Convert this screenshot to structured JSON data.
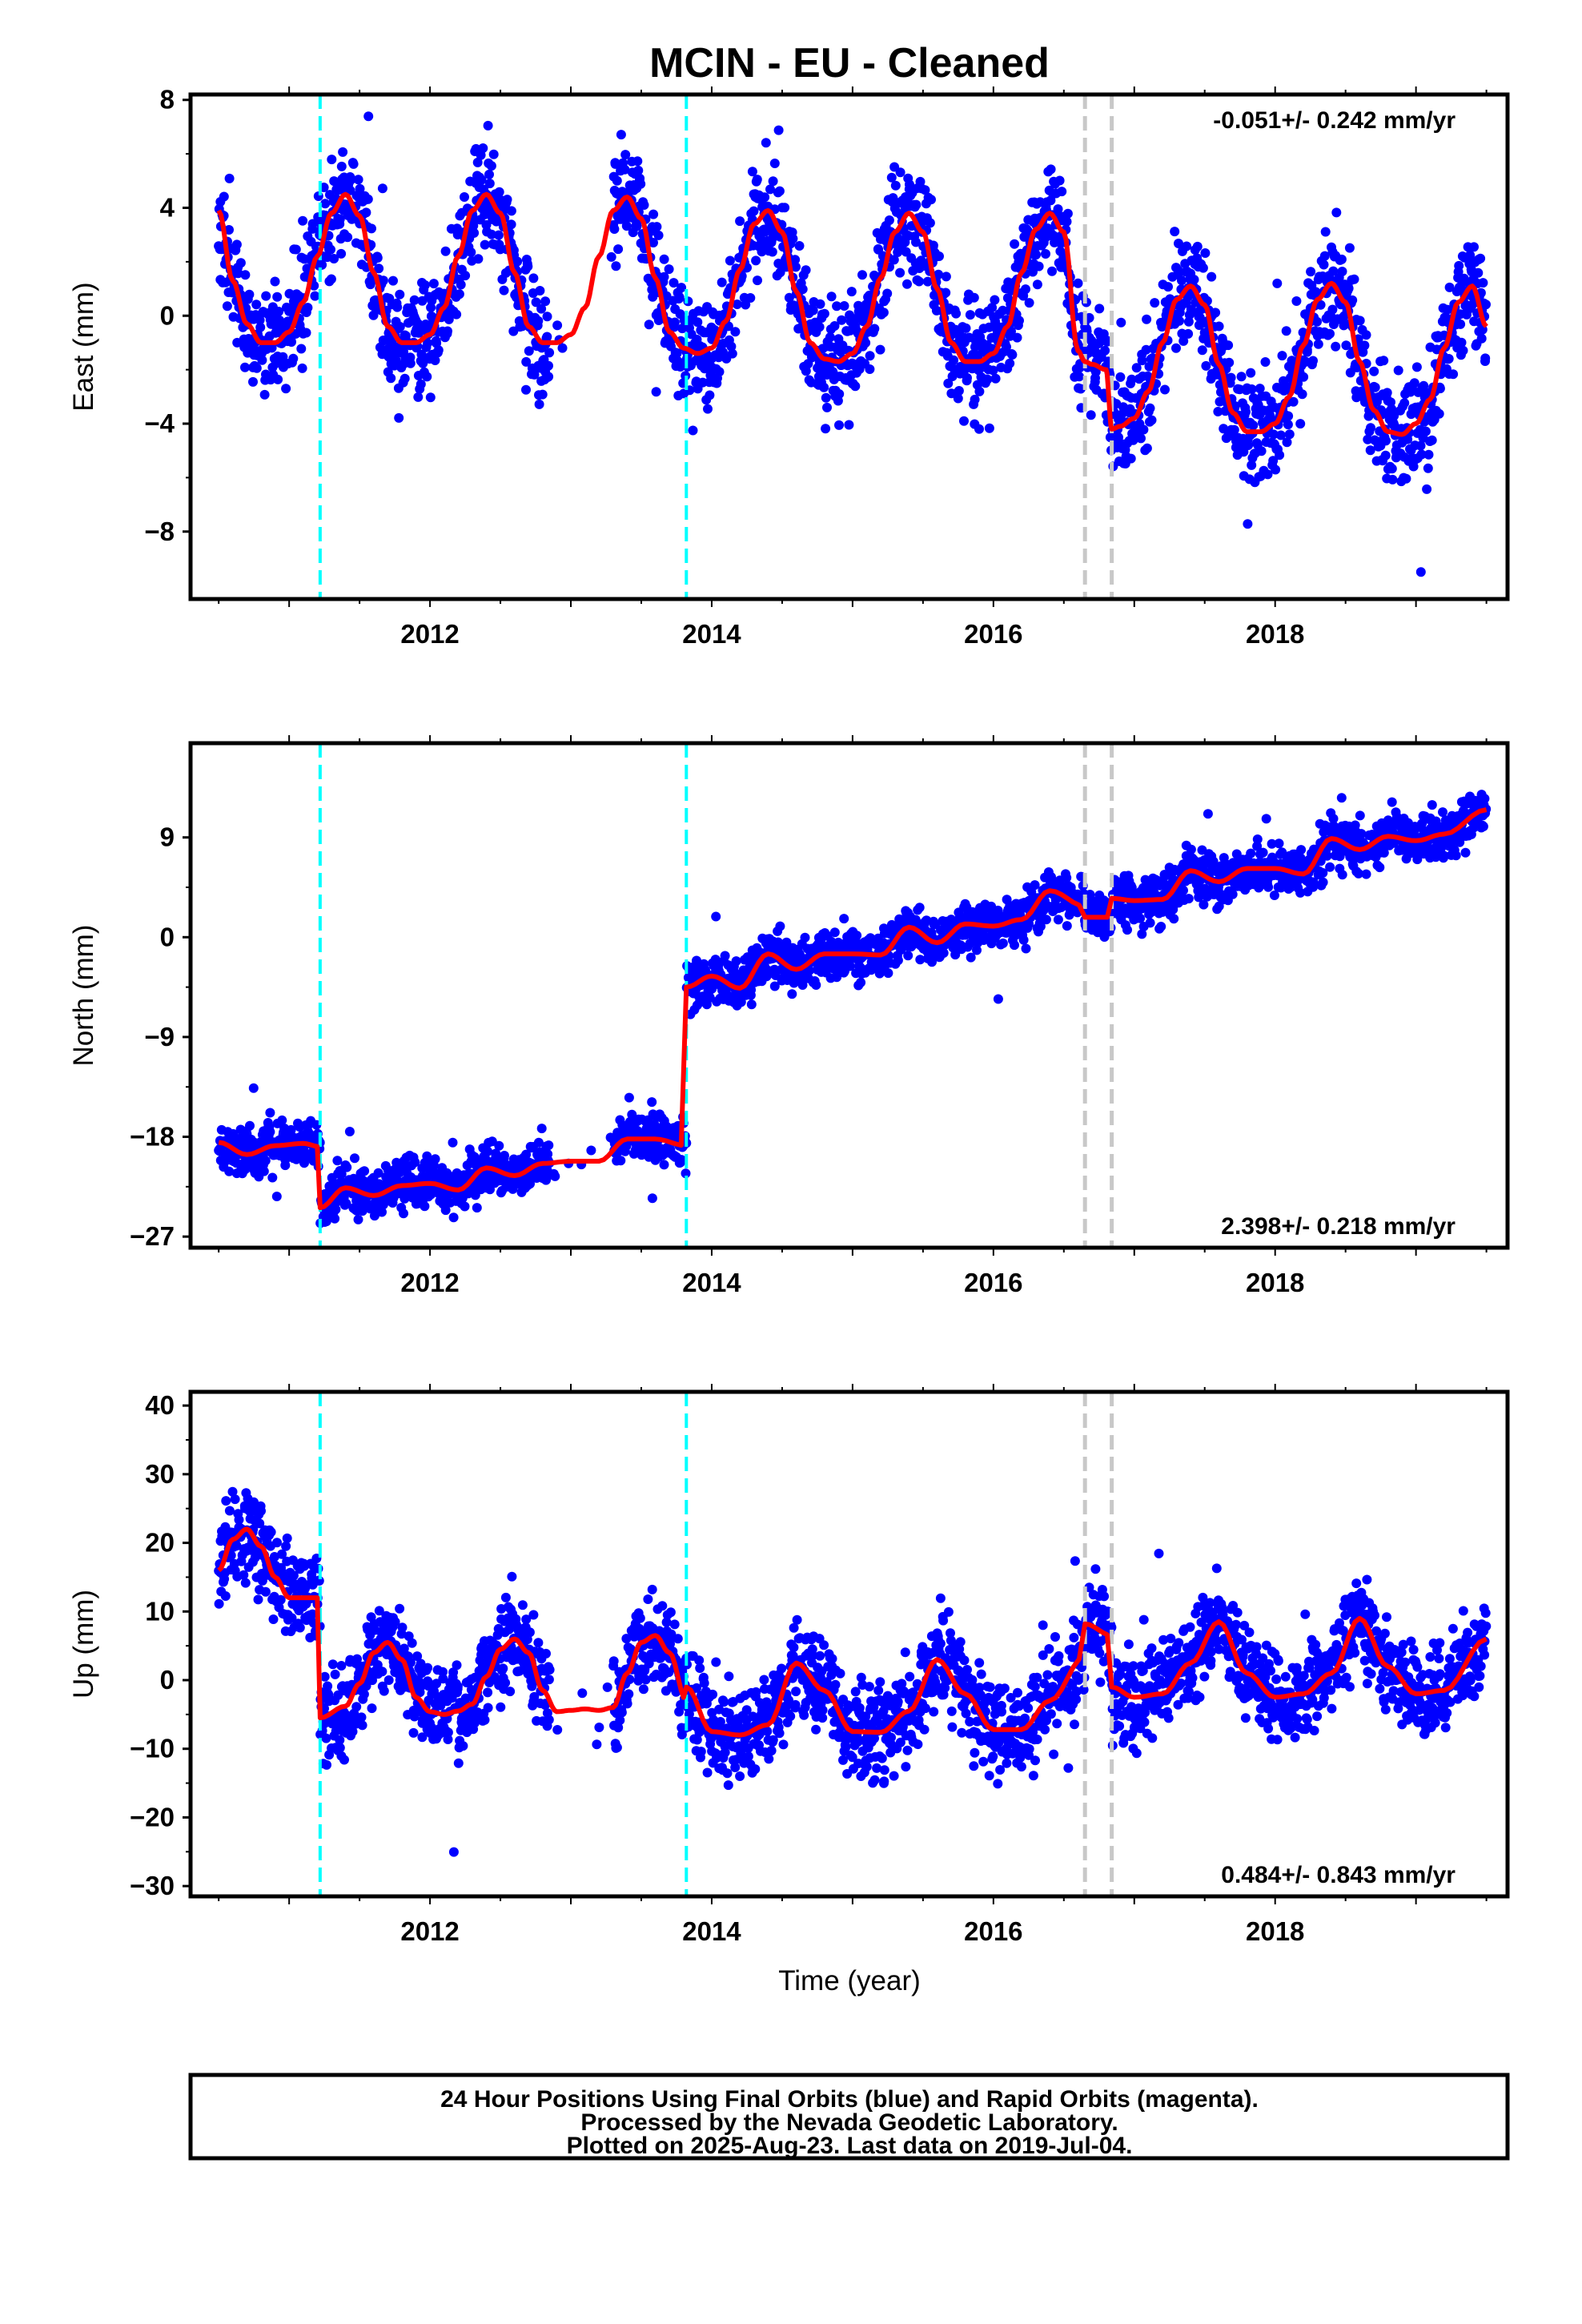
{
  "title": "MCIN  - EU - Cleaned",
  "xlabel": "Time (year)",
  "x_tick_labels": [
    "2012",
    "2014",
    "2016",
    "2018"
  ],
  "colors": {
    "data_points": "#0000ff",
    "model_fit": "#ff0000",
    "equipment_change_lines": "#00ffff",
    "other_event_lines": "#c8c8c8"
  },
  "footer": {
    "line1": "24 Hour Positions Using Final Orbits (blue) and Rapid Orbits (magenta).",
    "line2": "Processed by the Nevada Geodetic Laboratory.",
    "line3": "Plotted on 2025-Aug-23. Last data on 2019-Jul-04."
  },
  "chart_data": [
    {
      "type": "scatter",
      "panel": "east",
      "ylabel": "East (mm)",
      "rate_label": "-0.051+/- 0.242 mm/yr",
      "rate_position": "top-right",
      "xlim": [
        2010.3,
        2019.65
      ],
      "ylim": [
        -10.5,
        8.2
      ],
      "yticks": [
        8,
        4,
        0,
        -4,
        -8
      ],
      "ytick_labels": [
        "8",
        "4",
        "0",
        "−4",
        "−8"
      ],
      "xticks": [
        2012,
        2014,
        2016,
        2018
      ],
      "vlines_cyan": [
        2011.22,
        2013.82
      ],
      "vlines_gray": [
        2016.65,
        2016.84
      ],
      "grid": false,
      "model_fit": {
        "x": [
          2010.5,
          2010.6,
          2010.7,
          2010.8,
          2010.9,
          2011.0,
          2011.1,
          2011.2,
          2011.3,
          2011.4,
          2011.5,
          2011.6,
          2011.7,
          2011.8,
          2011.9,
          2012.0,
          2012.1,
          2012.2,
          2012.3,
          2012.4,
          2012.5,
          2012.6,
          2012.7,
          2012.8,
          2012.9,
          2013.0,
          2013.1,
          2013.2,
          2013.3,
          2013.4,
          2013.5,
          2013.6,
          2013.7,
          2013.8,
          2013.9,
          2014.0,
          2014.1,
          2014.2,
          2014.3,
          2014.4,
          2014.5,
          2014.6,
          2014.7,
          2014.8,
          2014.9,
          2015.0,
          2015.1,
          2015.2,
          2015.3,
          2015.4,
          2015.5,
          2015.6,
          2015.7,
          2015.8,
          2015.9,
          2016.0,
          2016.1,
          2016.2,
          2016.3,
          2016.4,
          2016.5,
          2016.6,
          2016.65,
          2016.7,
          2016.8,
          2016.84,
          2016.9,
          2017.0,
          2017.1,
          2017.2,
          2017.3,
          2017.4,
          2017.5,
          2017.6,
          2017.7,
          2017.8,
          2017.9,
          2018.0,
          2018.1,
          2018.2,
          2018.3,
          2018.4,
          2018.5,
          2018.6,
          2018.7,
          2018.8,
          2018.9,
          2019.0,
          2019.1,
          2019.2,
          2019.3,
          2019.4,
          2019.5
        ],
        "y": [
          3.9,
          1.3,
          -0.3,
          -1.0,
          -1.0,
          -0.6,
          0.5,
          2.2,
          3.8,
          4.5,
          3.7,
          1.6,
          -0.4,
          -1.0,
          -1.0,
          -0.7,
          0.3,
          2.2,
          3.9,
          4.5,
          3.8,
          1.6,
          -0.4,
          -1.0,
          -1.0,
          -0.7,
          0.3,
          2.2,
          3.9,
          4.4,
          3.6,
          1.4,
          -0.6,
          -1.2,
          -1.4,
          -1.2,
          -0.2,
          1.7,
          3.4,
          3.9,
          3.1,
          0.9,
          -1.0,
          -1.6,
          -1.7,
          -1.4,
          -0.4,
          1.4,
          3.1,
          3.8,
          3.1,
          1.0,
          -1.0,
          -1.7,
          -1.7,
          -1.4,
          -0.4,
          1.6,
          3.2,
          3.8,
          3.1,
          -1.3,
          -1.7,
          -1.8,
          -2.0,
          -4.2,
          -4.1,
          -3.8,
          -2.8,
          -1.0,
          0.6,
          1.1,
          0.4,
          -1.8,
          -3.6,
          -4.3,
          -4.3,
          -4.0,
          -3.0,
          -1.1,
          0.6,
          1.2,
          0.5,
          -1.7,
          -3.5,
          -4.3,
          -4.4,
          -4.0,
          -3.1,
          -1.2,
          0.5,
          1.1,
          -0.4
        ]
      }
    },
    {
      "type": "scatter",
      "panel": "north",
      "ylabel": "North (mm)",
      "rate_label": "2.398+/- 0.218 mm/yr",
      "rate_position": "bottom-right",
      "xlim": [
        2010.3,
        2019.65
      ],
      "ylim": [
        -28.0,
        17.5
      ],
      "yticks": [
        9,
        0,
        -9,
        -18,
        -27
      ],
      "ytick_labels": [
        "9",
        "0",
        "−9",
        "−18",
        "−27"
      ],
      "xticks": [
        2012,
        2014,
        2016,
        2018
      ],
      "vlines_cyan": [
        2011.22,
        2013.82
      ],
      "vlines_gray": [
        2016.65,
        2016.84
      ],
      "grid": false,
      "model_fit": {
        "x": [
          2010.5,
          2010.7,
          2010.9,
          2011.1,
          2011.22,
          2011.22,
          2011.4,
          2011.6,
          2011.8,
          2012.0,
          2012.2,
          2012.4,
          2012.6,
          2012.8,
          2013.0,
          2013.2,
          2013.4,
          2013.6,
          2013.82,
          2013.82,
          2014.0,
          2014.2,
          2014.4,
          2014.6,
          2014.8,
          2015.0,
          2015.2,
          2015.4,
          2015.6,
          2015.8,
          2016.0,
          2016.2,
          2016.4,
          2016.65,
          2016.65,
          2016.84,
          2016.84,
          2017.0,
          2017.2,
          2017.4,
          2017.6,
          2017.8,
          2018.0,
          2018.2,
          2018.4,
          2018.6,
          2018.8,
          2019.0,
          2019.2,
          2019.5
        ],
        "y": [
          -18.5,
          -19.6,
          -18.8,
          -18.6,
          -18.9,
          -24.4,
          -22.6,
          -23.3,
          -22.4,
          -22.2,
          -22.8,
          -20.8,
          -21.5,
          -20.4,
          -20.2,
          -20.2,
          -18.2,
          -18.2,
          -18.8,
          -4.5,
          -3.5,
          -4.6,
          -1.5,
          -2.9,
          -1.5,
          -1.5,
          -1.6,
          0.9,
          -0.5,
          1.2,
          1.0,
          1.6,
          4.2,
          2.8,
          1.8,
          1.8,
          3.5,
          3.3,
          3.4,
          6.0,
          5.0,
          6.2,
          6.2,
          5.7,
          8.9,
          7.9,
          9.1,
          8.7,
          9.3,
          11.5
        ]
      }
    },
    {
      "type": "scatter",
      "panel": "up",
      "ylabel": "Up (mm)",
      "rate_label": "0.484+/- 0.843 mm/yr",
      "rate_position": "bottom-right",
      "xlim": [
        2010.3,
        2019.65
      ],
      "ylim": [
        -31.5,
        42.0
      ],
      "yticks": [
        40,
        30,
        20,
        10,
        0,
        -10,
        -20,
        -30
      ],
      "ytick_labels": [
        "40",
        "30",
        "20",
        "10",
        "0",
        "−10",
        "−20",
        "−30"
      ],
      "xticks": [
        2012,
        2014,
        2016,
        2018
      ],
      "vlines_cyan": [
        2011.22,
        2013.82
      ],
      "vlines_gray": [
        2016.65,
        2016.84
      ],
      "grid": false,
      "model_fit": {
        "x": [
          2010.5,
          2010.6,
          2010.7,
          2010.8,
          2010.9,
          2011.0,
          2011.1,
          2011.22,
          2011.22,
          2011.4,
          2011.5,
          2011.6,
          2011.7,
          2011.8,
          2011.9,
          2012.0,
          2012.1,
          2012.2,
          2012.3,
          2012.4,
          2012.5,
          2012.6,
          2012.7,
          2012.8,
          2012.9,
          2013.0,
          2013.1,
          2013.2,
          2013.3,
          2013.4,
          2013.5,
          2013.6,
          2013.7,
          2013.82,
          2013.82,
          2014.0,
          2014.2,
          2014.4,
          2014.6,
          2014.8,
          2015.0,
          2015.2,
          2015.4,
          2015.6,
          2015.8,
          2016.0,
          2016.2,
          2016.4,
          2016.65,
          2016.65,
          2016.84,
          2016.84,
          2017.0,
          2017.2,
          2017.4,
          2017.6,
          2017.8,
          2018.0,
          2018.2,
          2018.4,
          2018.6,
          2018.8,
          2019.0,
          2019.2,
          2019.5
        ],
        "y": [
          16.0,
          20.5,
          22.0,
          19.5,
          15.0,
          12.0,
          12.0,
          12.0,
          -5.5,
          -3.8,
          -0.5,
          4.0,
          5.5,
          3.0,
          -2.5,
          -4.6,
          -5.0,
          -4.5,
          -3.5,
          0.5,
          4.5,
          6.0,
          4.0,
          -1.5,
          -4.6,
          -4.4,
          -4.2,
          -4.4,
          -4.0,
          1.0,
          5.5,
          6.5,
          4.0,
          -3.0,
          -1.0,
          -7.5,
          -8.0,
          -6.5,
          2.5,
          -1.5,
          -7.5,
          -7.6,
          -4.5,
          3.0,
          -2.0,
          -7.2,
          -7.2,
          -3.0,
          3.5,
          8.2,
          6.5,
          -1.0,
          -2.5,
          -2.0,
          2.5,
          8.5,
          1.0,
          -2.5,
          -2.0,
          1.0,
          9.0,
          2.0,
          -2.0,
          -1.5,
          6.0
        ]
      }
    }
  ]
}
